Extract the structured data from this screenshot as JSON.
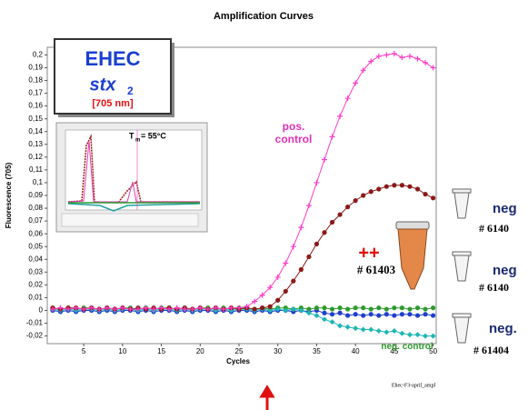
{
  "chart_data": {
    "type": "line",
    "title": "Amplification Curves",
    "x_label": "Cycles",
    "y_label": "Fluorescence (705)",
    "xlim": [
      0.3,
      50.4
    ],
    "ylim": [
      -0.026,
      0.206
    ],
    "xticks": [
      5,
      10,
      15,
      20,
      25,
      30,
      35,
      40,
      45,
      50
    ],
    "yticks": [
      {
        "value": 0.2,
        "label": "0,2"
      },
      {
        "value": 0.19,
        "label": "0,19"
      },
      {
        "value": 0.18,
        "label": "0,18"
      },
      {
        "value": 0.17,
        "label": "0,17"
      },
      {
        "value": 0.16,
        "label": "0,16"
      },
      {
        "value": 0.15,
        "label": "0,15"
      },
      {
        "value": 0.14,
        "label": "0,14"
      },
      {
        "value": 0.13,
        "label": "0,13"
      },
      {
        "value": 0.12,
        "label": "0,12"
      },
      {
        "value": 0.11,
        "label": "0,11"
      },
      {
        "value": 0.1,
        "label": "0,1"
      },
      {
        "value": 0.09,
        "label": "0,09"
      },
      {
        "value": 0.08,
        "label": "0,08"
      },
      {
        "value": 0.07,
        "label": "0,07"
      },
      {
        "value": 0.06,
        "label": "0,06"
      },
      {
        "value": 0.05,
        "label": "0,05"
      },
      {
        "value": 0.04,
        "label": "0,04"
      },
      {
        "value": 0.03,
        "label": "0,03"
      },
      {
        "value": 0.02,
        "label": "0,02"
      },
      {
        "value": 0.01,
        "label": "0,01"
      },
      0,
      {
        "value": -0.01,
        "label": "-0,01"
      },
      {
        "value": -0.02,
        "label": "-0,02"
      }
    ],
    "x": [
      1,
      2,
      3,
      4,
      5,
      6,
      7,
      8,
      9,
      10,
      11,
      12,
      13,
      14,
      15,
      16,
      17,
      18,
      19,
      20,
      21,
      22,
      23,
      24,
      25,
      26,
      27,
      28,
      29,
      30,
      31,
      32,
      33,
      34,
      35,
      36,
      37,
      38,
      39,
      40,
      41,
      42,
      43,
      44,
      45,
      46,
      47,
      48,
      49,
      50
    ],
    "series": [
      {
        "color": "#1f3fd0",
        "values": [
          0,
          -0.001,
          0,
          -0.001,
          0,
          0,
          -0.001,
          0,
          -0.001,
          0,
          0,
          -0.001,
          0,
          -0.001,
          0,
          0,
          -0.001,
          0,
          -0.001,
          0,
          0,
          -0.001,
          0,
          -0.001,
          0,
          0,
          -0.001,
          0,
          -0.001,
          0,
          0,
          -0.001,
          0,
          -0.001,
          0,
          -0.002,
          -0.003,
          -0.002,
          -0.004,
          -0.003,
          -0.004,
          -0.003,
          -0.004,
          -0.003,
          -0.004,
          -0.003,
          -0.003,
          -0.004,
          -0.003,
          -0.004
        ]
      },
      {
        "name": "neg. control",
        "color": "#2e9a2e",
        "values": [
          0.002,
          0.001,
          0.002,
          0.001,
          0.002,
          0.002,
          0.001,
          0.002,
          0.001,
          0.002,
          0.002,
          0.001,
          0.002,
          0.001,
          0.002,
          0.002,
          0.001,
          0.002,
          0.001,
          0.002,
          0.002,
          0.001,
          0.002,
          0.001,
          0.002,
          0.002,
          0.001,
          0.002,
          0.001,
          0.002,
          0.002,
          0.001,
          0.002,
          0.001,
          0.002,
          0.002,
          0.001,
          0.002,
          0.001,
          0.002,
          0.002,
          0.001,
          0.002,
          0.001,
          0.002,
          0.002,
          0.001,
          0.002,
          0.001,
          0.002
        ]
      },
      {
        "color": "#1fb5b5",
        "values": [
          0.001,
          0,
          0.001,
          0,
          0.001,
          0.001,
          0,
          0.001,
          0,
          0.001,
          0.001,
          0,
          0.001,
          0,
          0.001,
          0.001,
          0,
          0.001,
          0,
          0.001,
          0.001,
          0,
          0.001,
          0,
          0.001,
          0.001,
          0,
          0.001,
          0,
          0.001,
          0,
          0.001,
          0,
          -0.002,
          -0.004,
          -0.007,
          -0.009,
          -0.012,
          -0.013,
          -0.014,
          -0.015,
          -0.015,
          -0.016,
          -0.017,
          -0.016,
          -0.018,
          -0.019,
          -0.019,
          -0.02,
          -0.02
        ]
      },
      {
        "color": "#8b1a1a",
        "values": [
          0.002,
          0.001,
          0.002,
          0.002,
          0.001,
          0.002,
          0.001,
          0.002,
          0.001,
          0.002,
          0.001,
          0.002,
          0.001,
          0.002,
          0.001,
          0.002,
          0.001,
          0.002,
          0.001,
          0.002,
          0.001,
          0.002,
          0.001,
          0.002,
          0.001,
          0.002,
          0.001,
          0.002,
          0.003,
          0.008,
          0.015,
          0.023,
          0.032,
          0.042,
          0.052,
          0.061,
          0.069,
          0.075,
          0.081,
          0.086,
          0.09,
          0.093,
          0.095,
          0.097,
          0.098,
          0.098,
          0.097,
          0.095,
          0.091,
          0.088
        ]
      },
      {
        "name": "pos. control",
        "color": "#ff3cc8",
        "values": [
          0.001,
          0.002,
          0.001,
          0.002,
          0.001,
          0.002,
          0.001,
          0.002,
          0.001,
          0.002,
          0.001,
          0.001,
          0.002,
          0.001,
          0.002,
          0.001,
          0.002,
          0.001,
          0.001,
          0.002,
          0.001,
          0.002,
          0.001,
          0.002,
          0.002,
          0.003,
          0.007,
          0.012,
          0.018,
          0.026,
          0.037,
          0.05,
          0.065,
          0.082,
          0.1,
          0.118,
          0.136,
          0.152,
          0.166,
          0.178,
          0.188,
          0.195,
          0.199,
          0.2,
          0.201,
          0.198,
          0.199,
          0.197,
          0.194,
          0.19
        ]
      }
    ],
    "annotations": {
      "organism": "EHEC",
      "gene": "stx",
      "gene_sub": "2",
      "wavelength": "[705 nm]",
      "tm_t": "T",
      "tm_sub": "m",
      "tm_rest": "= 55°C",
      "plus": "++",
      "sample_pos": "# 61403",
      "neg1": "neg",
      "neg1_id": "# 6140",
      "neg2": "neg",
      "neg2_id": "# 6140",
      "neg3": "neg.",
      "neg3_id": "# 61404",
      "file": "Ehec-F3-april_ampl"
    }
  }
}
